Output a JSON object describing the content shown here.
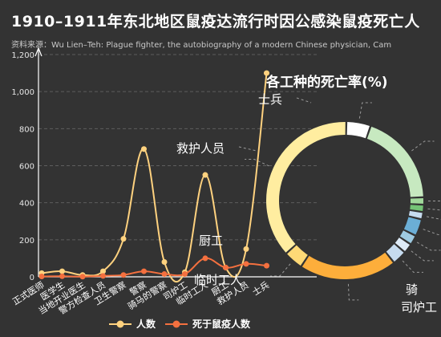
{
  "title": "1910–1911年东北地区鼠疫达流行时因公感染鼠疫死亡人",
  "subtitle": "资料来源：Wu Lien–Teh: Plague fighter, the autobiography of a modern Chinese physician, Cam",
  "colors": {
    "people": "#ffd27f",
    "deaths": "#f4703f",
    "grid": "#5e5e5e",
    "axis": "#ffffff"
  },
  "chart_data": [
    {
      "type": "line",
      "categories": [
        "正式医师",
        "医学生",
        "当地开业医生",
        "警方检查人员",
        "卫生警察",
        "警察",
        "骑马的警察",
        "司炉工",
        "临时工人",
        "厨工",
        "救护人员",
        "士兵"
      ],
      "series": [
        {
          "name": "人数",
          "values": [
            20,
            30,
            10,
            30,
            205,
            690,
            80,
            25,
            550,
            50,
            150,
            1100
          ]
        },
        {
          "name": "死于鼠疫人数",
          "values": [
            2,
            3,
            1,
            5,
            10,
            30,
            15,
            15,
            100,
            50,
            70,
            60
          ]
        }
      ],
      "ylim": [
        0,
        1200
      ],
      "yticks": [
        "0",
        "200",
        "400",
        "600",
        "800",
        "1,000",
        "1,200"
      ],
      "annotations": [
        "士兵",
        "救护人员",
        "厨工",
        "临时工人"
      ],
      "legend_position": "bottom"
    },
    {
      "type": "pie",
      "title": "各工种的死亡率(%)",
      "segments": [
        {
          "label": "",
          "value": 5,
          "color": "#ffffff"
        },
        {
          "label": "",
          "value": 19,
          "color": "#c7e9c0"
        },
        {
          "label": "",
          "value": 1.5,
          "color": "#a1d99b"
        },
        {
          "label": "",
          "value": 1.5,
          "color": "#74c476"
        },
        {
          "label": "",
          "value": 1.5,
          "color": "#c6dbef"
        },
        {
          "label": "",
          "value": 3.5,
          "color": "#6baed6"
        },
        {
          "label": "",
          "value": 2,
          "color": "#9ecae1"
        },
        {
          "label": "",
          "value": 2,
          "color": "#deebf7"
        },
        {
          "label": "骑",
          "value": 3,
          "color": "#c6dbef"
        },
        {
          "label": "司炉工",
          "value": 20,
          "color": "#fdae3b"
        },
        {
          "label": "",
          "value": 4,
          "color": "#fed976"
        },
        {
          "label": "",
          "value": 37,
          "color": "#ffeda0"
        }
      ],
      "outer_labels": [
        "骑",
        "司炉工"
      ]
    }
  ]
}
